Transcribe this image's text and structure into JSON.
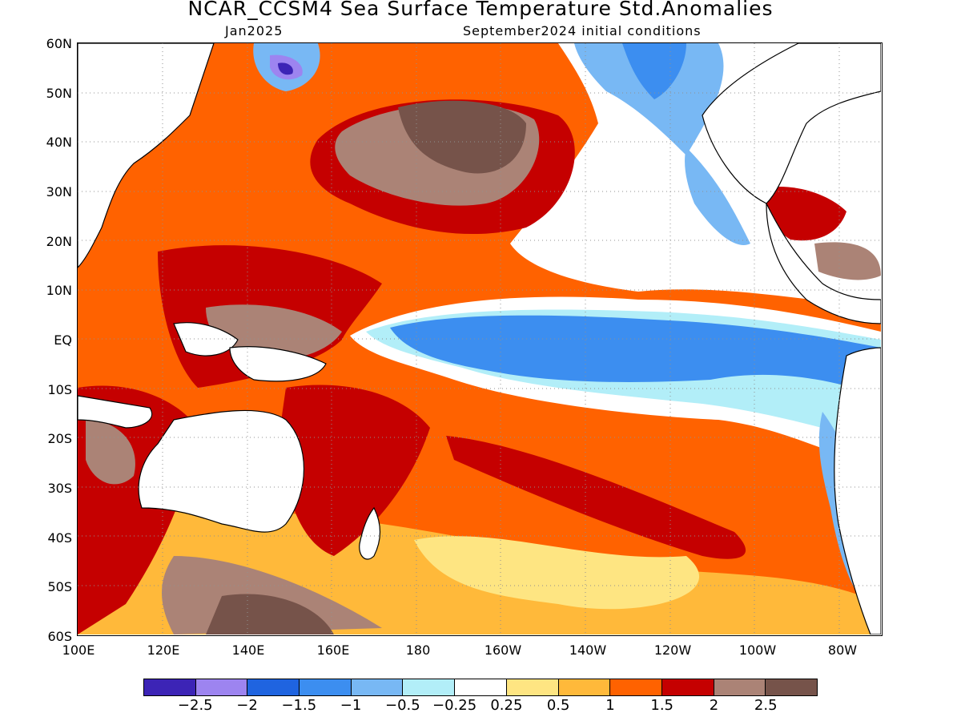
{
  "title": "NCAR_CCSM4 Sea Surface Temperature Std.Anomalies",
  "valid_month": "Jan2025",
  "initial_conditions": "September2024 initial conditions",
  "lat_labels": [
    "60N",
    "50N",
    "40N",
    "30N",
    "20N",
    "10N",
    "EQ",
    "10S",
    "20S",
    "30S",
    "40S",
    "50S",
    "60S"
  ],
  "lon_labels": [
    "100E",
    "120E",
    "140E",
    "160E",
    "180",
    "160W",
    "140W",
    "120W",
    "100W",
    "80W"
  ],
  "colorbar": {
    "colors": [
      "#3c24b6",
      "#9d84f0",
      "#1f64e0",
      "#3c8ef0",
      "#78b8f4",
      "#b2eef8",
      "#ffffff",
      "#fee582",
      "#ffb93a",
      "#ff6200",
      "#c50000",
      "#ab8376",
      "#76534a"
    ],
    "labels": [
      "−2.5",
      "−2",
      "−1.5",
      "−1",
      "−0.5",
      "−0.25",
      "0.25",
      "0.5",
      "1",
      "1.5",
      "2",
      "2.5"
    ]
  },
  "map": {
    "domain": {
      "lon_min": 100,
      "lon_max": 290,
      "lat_min": -60,
      "lat_max": 60
    },
    "grid": "dotted",
    "land_color": "#ffffff",
    "coastline_color": "#000000",
    "pattern": "La Nina: cold anomalies in equatorial central-eastern Pacific, warm anomalies in western and North Pacific"
  }
}
